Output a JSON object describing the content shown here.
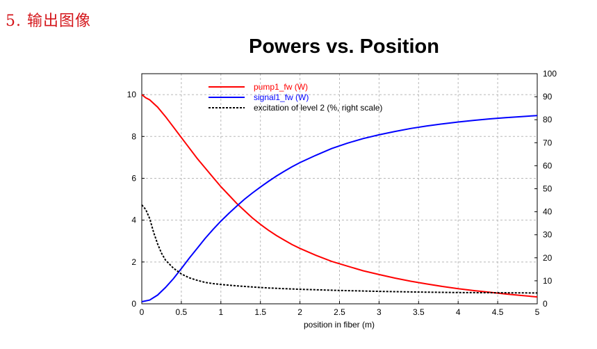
{
  "page": {
    "heading": "5. 输出图像"
  },
  "chart_data": {
    "type": "line",
    "title": "Powers vs. Position",
    "xlabel": "position in fiber (m)",
    "ylabel": "",
    "ylabel_right": "",
    "xlim": [
      0,
      5
    ],
    "ylim": [
      0,
      11
    ],
    "ylim_right": [
      0,
      100
    ],
    "x_ticks": [
      0,
      0.5,
      1,
      1.5,
      2,
      2.5,
      3,
      3.5,
      4,
      4.5,
      5
    ],
    "y_ticks": [
      0,
      2,
      4,
      6,
      8,
      10
    ],
    "y_right_ticks": [
      0,
      10,
      20,
      30,
      40,
      50,
      60,
      70,
      80,
      90,
      100
    ],
    "grid": true,
    "legend_position": "top-left",
    "series": [
      {
        "name": "pump1_fw (W)",
        "axis": "left",
        "color": "#ff0000",
        "style": "solid",
        "points": [
          [
            0,
            10.0
          ],
          [
            0.05,
            9.85
          ],
          [
            0.1,
            9.75
          ],
          [
            0.2,
            9.4
          ],
          [
            0.3,
            8.95
          ],
          [
            0.4,
            8.45
          ],
          [
            0.5,
            7.95
          ],
          [
            0.6,
            7.45
          ],
          [
            0.7,
            6.95
          ],
          [
            0.8,
            6.5
          ],
          [
            0.9,
            6.05
          ],
          [
            1.0,
            5.6
          ],
          [
            1.1,
            5.2
          ],
          [
            1.2,
            4.8
          ],
          [
            1.3,
            4.45
          ],
          [
            1.4,
            4.1
          ],
          [
            1.5,
            3.8
          ],
          [
            1.6,
            3.52
          ],
          [
            1.7,
            3.27
          ],
          [
            1.8,
            3.05
          ],
          [
            1.9,
            2.83
          ],
          [
            2.0,
            2.65
          ],
          [
            2.2,
            2.32
          ],
          [
            2.4,
            2.03
          ],
          [
            2.6,
            1.8
          ],
          [
            2.8,
            1.58
          ],
          [
            3.0,
            1.4
          ],
          [
            3.2,
            1.23
          ],
          [
            3.4,
            1.08
          ],
          [
            3.6,
            0.95
          ],
          [
            3.8,
            0.83
          ],
          [
            4.0,
            0.72
          ],
          [
            4.2,
            0.63
          ],
          [
            4.4,
            0.55
          ],
          [
            4.6,
            0.47
          ],
          [
            4.8,
            0.4
          ],
          [
            5.0,
            0.33
          ]
        ]
      },
      {
        "name": "signal1_fw (W)",
        "axis": "left",
        "color": "#0000ff",
        "style": "solid",
        "points": [
          [
            0,
            0.1
          ],
          [
            0.1,
            0.18
          ],
          [
            0.2,
            0.42
          ],
          [
            0.3,
            0.78
          ],
          [
            0.4,
            1.2
          ],
          [
            0.5,
            1.68
          ],
          [
            0.6,
            2.18
          ],
          [
            0.7,
            2.65
          ],
          [
            0.8,
            3.12
          ],
          [
            0.9,
            3.55
          ],
          [
            1.0,
            3.95
          ],
          [
            1.1,
            4.32
          ],
          [
            1.2,
            4.67
          ],
          [
            1.3,
            5.0
          ],
          [
            1.4,
            5.3
          ],
          [
            1.5,
            5.58
          ],
          [
            1.6,
            5.85
          ],
          [
            1.7,
            6.1
          ],
          [
            1.8,
            6.33
          ],
          [
            1.9,
            6.55
          ],
          [
            2.0,
            6.75
          ],
          [
            2.2,
            7.1
          ],
          [
            2.4,
            7.42
          ],
          [
            2.6,
            7.68
          ],
          [
            2.8,
            7.9
          ],
          [
            3.0,
            8.08
          ],
          [
            3.2,
            8.24
          ],
          [
            3.4,
            8.38
          ],
          [
            3.6,
            8.5
          ],
          [
            3.8,
            8.6
          ],
          [
            4.0,
            8.69
          ],
          [
            4.2,
            8.77
          ],
          [
            4.4,
            8.84
          ],
          [
            4.6,
            8.9
          ],
          [
            4.8,
            8.95
          ],
          [
            5.0,
            9.0
          ]
        ]
      },
      {
        "name": "excitation of level 2 (%, right scale)",
        "axis": "right",
        "color": "#000000",
        "style": "dashed",
        "points": [
          [
            0,
            43
          ],
          [
            0.05,
            41
          ],
          [
            0.1,
            37
          ],
          [
            0.15,
            31
          ],
          [
            0.2,
            26
          ],
          [
            0.25,
            22
          ],
          [
            0.3,
            19
          ],
          [
            0.4,
            15.5
          ],
          [
            0.5,
            13
          ],
          [
            0.6,
            11.3
          ],
          [
            0.7,
            10.2
          ],
          [
            0.8,
            9.3
          ],
          [
            0.9,
            8.8
          ],
          [
            1.0,
            8.4
          ],
          [
            1.2,
            7.8
          ],
          [
            1.4,
            7.3
          ],
          [
            1.6,
            6.9
          ],
          [
            1.8,
            6.6
          ],
          [
            2.0,
            6.3
          ],
          [
            2.5,
            5.8
          ],
          [
            3.0,
            5.4
          ],
          [
            3.5,
            5.1
          ],
          [
            4.0,
            4.9
          ],
          [
            4.5,
            4.8
          ],
          [
            5.0,
            4.7
          ]
        ]
      }
    ]
  }
}
